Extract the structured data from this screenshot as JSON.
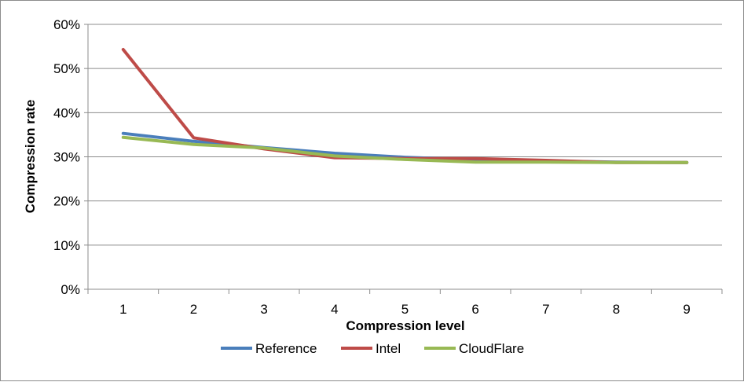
{
  "chart_data": {
    "type": "line",
    "title": "",
    "xlabel": "Compression level",
    "ylabel": "Compression rate",
    "x": [
      1,
      2,
      3,
      4,
      5,
      6,
      7,
      8,
      9
    ],
    "x_tick_labels": [
      "1",
      "2",
      "3",
      "4",
      "5",
      "6",
      "7",
      "8",
      "9"
    ],
    "ylim": [
      0,
      0.6
    ],
    "y_ticks": [
      0,
      0.1,
      0.2,
      0.3,
      0.4,
      0.5,
      0.6
    ],
    "y_tick_labels": [
      "0%",
      "10%",
      "20%",
      "30%",
      "40%",
      "50%",
      "60%"
    ],
    "grid": "horizontal",
    "legend_position": "bottom",
    "series": [
      {
        "name": "Reference",
        "color": "#4a7ebb",
        "values": [
          0.353,
          0.335,
          0.321,
          0.308,
          0.299,
          0.293,
          0.29,
          0.288,
          0.287
        ]
      },
      {
        "name": "Intel",
        "color": "#be4b48",
        "values": [
          0.543,
          0.343,
          0.318,
          0.298,
          0.296,
          0.296,
          0.292,
          0.287,
          0.287
        ]
      },
      {
        "name": "CloudFlare",
        "color": "#98b954",
        "values": [
          0.344,
          0.328,
          0.32,
          0.302,
          0.294,
          0.288,
          0.288,
          0.287,
          0.287
        ]
      }
    ]
  }
}
